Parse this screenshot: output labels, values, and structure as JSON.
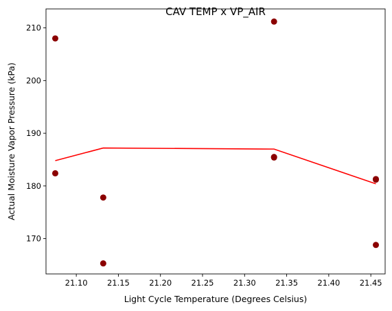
{
  "chart_data": {
    "type": "scatter",
    "title": "CAV TEMP x VP_AIR",
    "xlabel": "Light Cycle Temperature (Degrees Celsius)",
    "ylabel": "Actual Moisture Vapor Pressure (kPa)",
    "xlim": [
      21.064,
      21.467
    ],
    "ylim": [
      163.3,
      213.6
    ],
    "xticks": [
      21.1,
      21.15,
      21.2,
      21.25,
      21.3,
      21.35,
      21.4,
      21.45
    ],
    "xtick_labels": [
      "21.10",
      "21.15",
      "21.20",
      "21.25",
      "21.30",
      "21.35",
      "21.40",
      "21.45"
    ],
    "yticks": [
      170,
      180,
      190,
      200,
      210
    ],
    "ytick_labels": [
      "170",
      "180",
      "190",
      "200",
      "210"
    ],
    "grid": false,
    "series": [
      {
        "kind": "scatter",
        "color": "#8b0000",
        "points": [
          {
            "x": 21.075,
            "y": 208.0
          },
          {
            "x": 21.075,
            "y": 182.4
          },
          {
            "x": 21.132,
            "y": 177.8
          },
          {
            "x": 21.132,
            "y": 165.3
          },
          {
            "x": 21.335,
            "y": 211.2
          },
          {
            "x": 21.335,
            "y": 185.4
          },
          {
            "x": 21.335,
            "y": 185.5
          },
          {
            "x": 21.456,
            "y": 181.3
          },
          {
            "x": 21.456,
            "y": 181.2
          },
          {
            "x": 21.456,
            "y": 168.8
          }
        ]
      },
      {
        "kind": "line",
        "color": "#ff0000",
        "points": [
          {
            "x": 21.075,
            "y": 184.8
          },
          {
            "x": 21.132,
            "y": 187.2
          },
          {
            "x": 21.335,
            "y": 187.0
          },
          {
            "x": 21.456,
            "y": 180.4
          }
        ]
      }
    ]
  }
}
